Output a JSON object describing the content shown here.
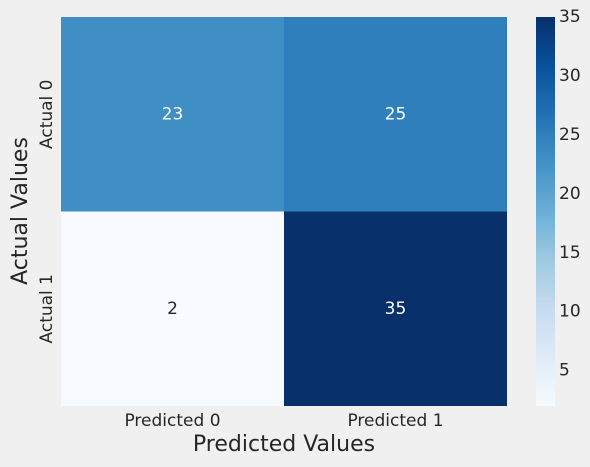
{
  "chart_data": {
    "type": "heatmap",
    "title": "",
    "xlabel": "Predicted Values",
    "ylabel": "Actual Values",
    "x_categories": [
      "Predicted 0",
      "Predicted 1"
    ],
    "y_categories": [
      "Actual 0",
      "Actual 1"
    ],
    "values": [
      [
        23,
        25
      ],
      [
        2,
        35
      ]
    ],
    "colormap": "Blues",
    "vmin": 2,
    "vmax": 35,
    "colorbar_ticks": [
      5,
      10,
      15,
      20,
      25,
      30,
      35
    ],
    "annotations": true,
    "grid": false,
    "colorbar_position": "right"
  }
}
